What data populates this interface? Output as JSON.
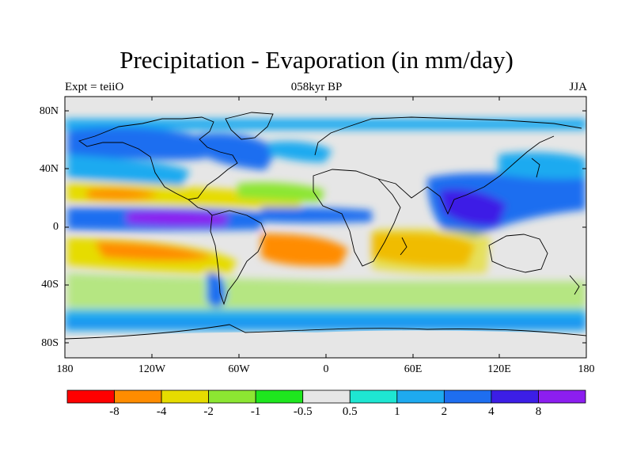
{
  "title": "Precipitation - Evaporation (in mm/day)",
  "left_string": "Expt = teiiO",
  "center_string": "058kyr BP",
  "right_string": "JJA",
  "lat_labels": [
    "80N",
    "40N",
    "0",
    "40S",
    "80S"
  ],
  "lon_labels": [
    "180",
    "120W",
    "60W",
    "0",
    "60E",
    "120E",
    "180"
  ],
  "colorbar": {
    "colors": [
      "#ff0000",
      "#ff8c00",
      "#e6dc00",
      "#8ce632",
      "#1ee61e",
      "#e6e6e6",
      "#1ee6d2",
      "#1eaaf0",
      "#1e6ef0",
      "#3c1ee6",
      "#8c1ef0"
    ],
    "labels": [
      "-8",
      "-4",
      "-2",
      "-1",
      "-0.5",
      "0.5",
      "1",
      "2",
      "4",
      "8"
    ]
  }
}
